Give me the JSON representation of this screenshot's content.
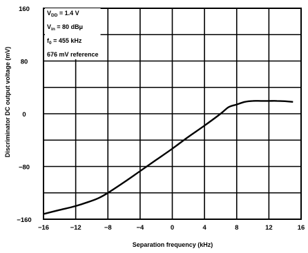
{
  "chart_data": {
    "type": "line",
    "title": "",
    "xlabel": "Separation frequency (kHz)",
    "ylabel": "Discriminator DC output voltage (mV)",
    "xlim": [
      -16,
      16
    ],
    "ylim": [
      -160,
      160
    ],
    "x_ticks": [
      -16,
      -12,
      -8,
      -4,
      0,
      4,
      8,
      12,
      16
    ],
    "x_tick_labels": [
      "−16",
      "−12",
      "−8",
      "−4",
      "0",
      "4",
      "8",
      "12",
      "16"
    ],
    "y_ticks": [
      -160,
      -80,
      0,
      80,
      160
    ],
    "y_tick_labels": [
      "−160",
      "−80",
      "0",
      "80",
      "160"
    ],
    "grid": true,
    "annotations": [
      "V_DD = 1.4 V",
      "V_in = 80 dBμ",
      "f_0 = 455 kHz",
      "676 mV reference"
    ],
    "series": [
      {
        "x": [
          -16,
          -14,
          -12,
          -10,
          -9,
          -8,
          -6,
          -4,
          -2,
          0,
          2,
          4,
          6,
          7,
          8,
          9,
          10,
          11,
          12,
          13,
          14,
          15
        ],
        "values": [
          -152,
          -146,
          -140,
          -132,
          -127,
          -120,
          -104,
          -87,
          -70,
          -53,
          -35,
          -18,
          0,
          10,
          14,
          18,
          19.5,
          19.5,
          19.5,
          19.5,
          19,
          18
        ]
      }
    ]
  },
  "labels": {
    "annotation_lines": [
      {
        "main": "V",
        "sub": "DD",
        "rest": " = 1.4 V"
      },
      {
        "main": "V",
        "sub": "in",
        "rest": " = 80 dBμ"
      },
      {
        "main": "f",
        "sub": "0",
        "rest": " = 455 kHz"
      },
      {
        "main": "676 mV reference",
        "sub": "",
        "rest": ""
      }
    ]
  }
}
